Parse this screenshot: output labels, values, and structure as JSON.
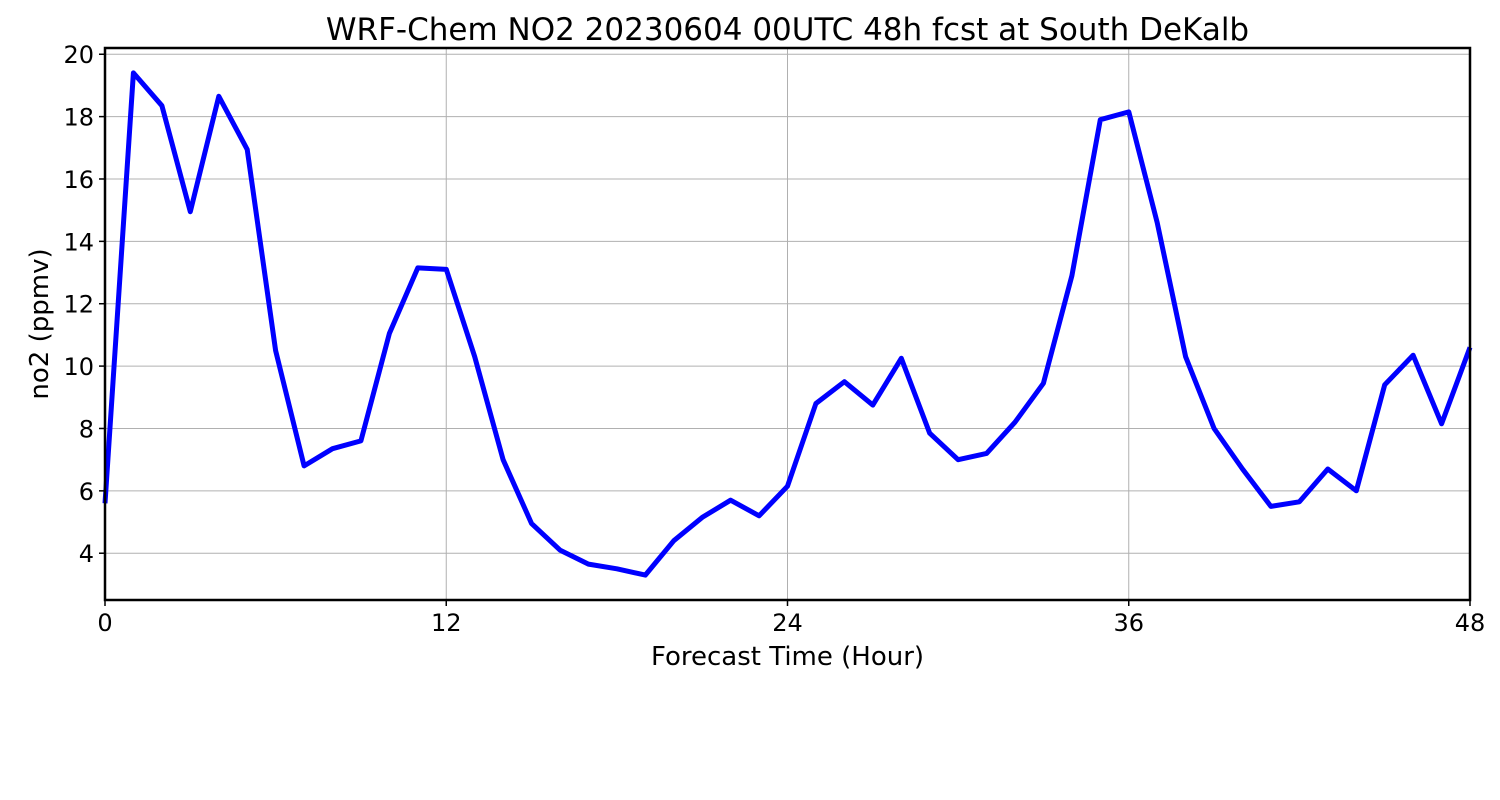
{
  "chart_data": {
    "type": "line",
    "title": "WRF-Chem NO2  20230604 00UTC 48h fcst at South DeKalb",
    "xlabel": "Forecast Time (Hour)",
    "ylabel": "no2  (ppmv)",
    "xlim": [
      0,
      48
    ],
    "ylim": [
      2.5,
      20.2
    ],
    "xticks": [
      0,
      12,
      24,
      36,
      48
    ],
    "yticks": [
      4,
      6,
      8,
      10,
      12,
      14,
      16,
      18,
      20
    ],
    "grid": true,
    "series": [
      {
        "color": "#0000ff",
        "x": [
          0,
          1,
          2,
          3,
          4,
          5,
          6,
          7,
          8,
          9,
          10,
          11,
          12,
          13,
          14,
          15,
          16,
          17,
          18,
          19,
          20,
          21,
          22,
          23,
          24,
          25,
          26,
          27,
          28,
          29,
          30,
          31,
          32,
          33,
          34,
          35,
          36,
          37,
          38,
          39,
          40,
          41,
          42,
          43,
          44,
          45,
          46,
          47,
          48
        ],
        "values": [
          5.6,
          19.4,
          18.35,
          14.95,
          18.65,
          16.95,
          10.5,
          6.8,
          7.35,
          7.6,
          11.05,
          13.15,
          13.1,
          10.3,
          7.0,
          4.95,
          4.1,
          3.65,
          3.5,
          3.3,
          4.4,
          5.15,
          5.7,
          5.2,
          6.15,
          8.8,
          9.5,
          8.75,
          10.25,
          7.85,
          7.0,
          7.2,
          8.2,
          9.45,
          12.9,
          17.9,
          18.15,
          14.6,
          10.3,
          8.0,
          6.7,
          5.5,
          5.65,
          6.7,
          6.0,
          9.4,
          10.35,
          8.15,
          10.6
        ]
      }
    ]
  }
}
